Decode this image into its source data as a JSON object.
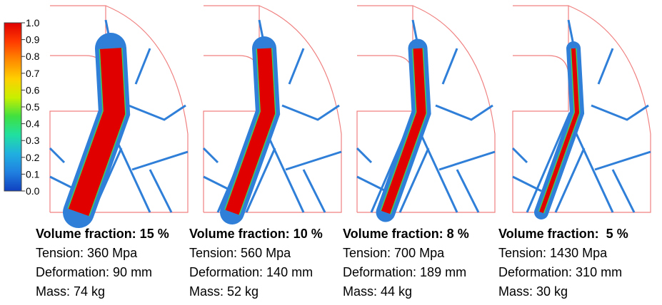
{
  "colorbar": {
    "ticks": [
      "1.0",
      "0.9",
      "0.8",
      "0.7",
      "0.6",
      "0.5",
      "0.4",
      "0.3",
      "0.2",
      "0.1",
      "0.0"
    ]
  },
  "panels": [
    {
      "title": "Volume fraction: 15 %",
      "lines": [
        "Tension: 360 Mpa",
        "Deformation: 90 mm",
        "Mass: 74 kg"
      ]
    },
    {
      "title": "Volume fraction: 10 %",
      "lines": [
        "Tension: 560 Mpa",
        "Deformation: 140 mm",
        "Mass: 52 kg"
      ]
    },
    {
      "title": "Volume fraction: 8 %",
      "lines": [
        "Tension: 700 Mpa",
        "Deformation: 189 mm",
        "Mass: 44 kg"
      ]
    },
    {
      "title": "Volume fraction:  5 %",
      "lines": [
        "Tension: 1430 Mpa",
        "Deformation: 310 mm",
        "Mass: 30 kg"
      ]
    }
  ]
}
